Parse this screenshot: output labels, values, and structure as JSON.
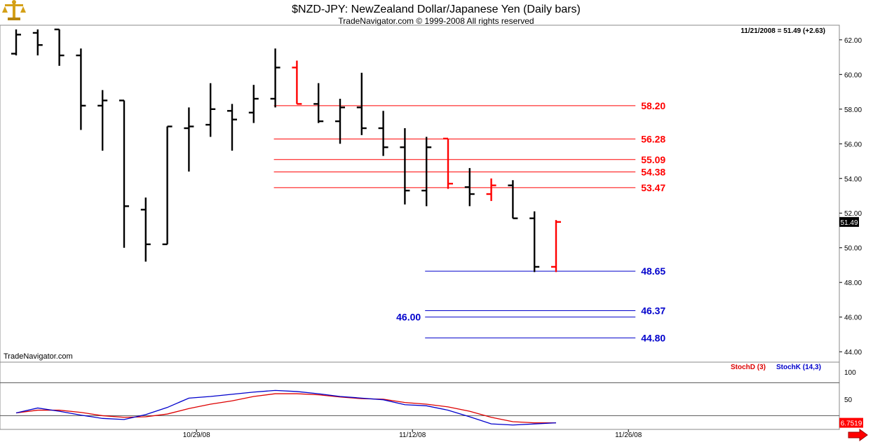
{
  "header": {
    "title": "$NZD-JPY:  NewZealand Dollar/Japanese Yen  (Daily bars)",
    "copyright": "TradeNavigator.com © 1999-2008 All rights reserved",
    "last_quote": "11/21/2008 = 51.49 (+2.63)",
    "watermark": "TradeNavigator.com",
    "logo_icon": "scales-icon"
  },
  "colors": {
    "up_bar": "#000000",
    "down_bar": "#ff0000",
    "resistance": "#ff0000",
    "support": "#0000cc",
    "stoch_d": "#dd0000",
    "stoch_k": "#0000cc",
    "last_price_box": "#000000"
  },
  "chart_data": [
    {
      "type": "ohlc",
      "title": "$NZD-JPY:  NewZealand Dollar/Japanese Yen  (Daily bars)",
      "ylim": [
        43.4,
        62.6
      ],
      "y_ticks": [
        44,
        46,
        48,
        50,
        52,
        54,
        56,
        58,
        60,
        62
      ],
      "y_tick_labels": [
        "44.00",
        "46.00",
        "48.00",
        "50.00",
        "52.00",
        "54.00",
        "56.00",
        "58.00",
        "60.00",
        "62.00"
      ],
      "x_tick_labels": [
        {
          "label": "10/29/08",
          "bar_index": 9
        },
        {
          "label": "11/12/08",
          "bar_index": 19
        },
        {
          "label": "11/26/08",
          "bar_index": 29
        }
      ],
      "last_price": 51.49,
      "last_price_label": "51.49",
      "bars": [
        {
          "o": 61.2,
          "h": 62.6,
          "l": 61.1,
          "c": 62.3,
          "color": "black"
        },
        {
          "o": 62.4,
          "h": 62.6,
          "l": 61.1,
          "c": 61.7,
          "color": "black"
        },
        {
          "o": 62.6,
          "h": 62.6,
          "l": 60.5,
          "c": 61.1,
          "color": "black"
        },
        {
          "o": 61.1,
          "h": 61.5,
          "l": 56.8,
          "c": 58.2,
          "color": "black"
        },
        {
          "o": 58.2,
          "h": 59.1,
          "l": 55.6,
          "c": 58.5,
          "color": "black"
        },
        {
          "o": 58.5,
          "h": 58.5,
          "l": 50.0,
          "c": 52.4,
          "color": "black"
        },
        {
          "o": 52.2,
          "h": 52.9,
          "l": 49.2,
          "c": 50.2,
          "color": "black"
        },
        {
          "o": 50.2,
          "h": 57.0,
          "l": 50.2,
          "c": 57.0,
          "color": "black"
        },
        {
          "o": 56.9,
          "h": 58.1,
          "l": 54.4,
          "c": 57.0,
          "color": "black"
        },
        {
          "o": 57.1,
          "h": 59.5,
          "l": 56.4,
          "c": 58.0,
          "color": "black"
        },
        {
          "o": 57.9,
          "h": 58.3,
          "l": 55.6,
          "c": 57.4,
          "color": "black"
        },
        {
          "o": 57.8,
          "h": 59.4,
          "l": 57.2,
          "c": 58.6,
          "color": "black"
        },
        {
          "o": 58.6,
          "h": 61.5,
          "l": 58.1,
          "c": 60.4,
          "color": "black"
        },
        {
          "o": 60.4,
          "h": 60.8,
          "l": 58.3,
          "c": 58.3,
          "color": "red"
        },
        {
          "o": 58.3,
          "h": 59.5,
          "l": 57.2,
          "c": 57.3,
          "color": "black"
        },
        {
          "o": 57.3,
          "h": 58.6,
          "l": 56.0,
          "c": 58.1,
          "color": "black"
        },
        {
          "o": 58.1,
          "h": 60.1,
          "l": 56.5,
          "c": 56.9,
          "color": "black"
        },
        {
          "o": 56.9,
          "h": 57.9,
          "l": 55.3,
          "c": 55.8,
          "color": "black"
        },
        {
          "o": 55.8,
          "h": 56.9,
          "l": 52.5,
          "c": 53.3,
          "color": "black"
        },
        {
          "o": 53.3,
          "h": 56.4,
          "l": 52.4,
          "c": 55.8,
          "color": "black"
        },
        {
          "o": 56.3,
          "h": 56.3,
          "l": 53.4,
          "c": 53.7,
          "color": "red"
        },
        {
          "o": 53.5,
          "h": 54.6,
          "l": 52.4,
          "c": 53.1,
          "color": "black"
        },
        {
          "o": 53.1,
          "h": 54.0,
          "l": 52.7,
          "c": 53.6,
          "color": "red"
        },
        {
          "o": 53.6,
          "h": 53.9,
          "l": 51.7,
          "c": 51.7,
          "color": "black"
        },
        {
          "o": 51.7,
          "h": 52.1,
          "l": 48.6,
          "c": 48.9,
          "color": "black"
        },
        {
          "o": 48.9,
          "h": 51.6,
          "l": 48.6,
          "c": 51.49,
          "color": "red"
        }
      ],
      "levels": [
        {
          "value": 58.2,
          "label": "58.20",
          "color": "red",
          "from_bar": 12,
          "to_bar": 29
        },
        {
          "value": 56.28,
          "label": "56.28",
          "color": "red",
          "from_bar": 12,
          "to_bar": 29
        },
        {
          "value": 55.09,
          "label": "55.09",
          "color": "red",
          "from_bar": 12,
          "to_bar": 29
        },
        {
          "value": 54.38,
          "label": "54.38",
          "color": "red",
          "from_bar": 12,
          "to_bar": 29
        },
        {
          "value": 53.47,
          "label": "53.47",
          "color": "red",
          "from_bar": 12,
          "to_bar": 29
        },
        {
          "value": 48.65,
          "label": "48.65",
          "color": "blue",
          "from_bar": 19,
          "to_bar": 29
        },
        {
          "value": 46.37,
          "label": "46.37",
          "color": "blue",
          "from_bar": 19,
          "to_bar": 29
        },
        {
          "value": 46.0,
          "label": "46.00",
          "color": "blue",
          "from_bar": 19,
          "to_bar": 29,
          "label_side": "left"
        },
        {
          "value": 44.8,
          "label": "44.80",
          "color": "blue",
          "from_bar": 19,
          "to_bar": 29
        }
      ]
    },
    {
      "type": "line",
      "title": "Stochastic",
      "ylim": [
        -5,
        115
      ],
      "y_tick_labels": [
        "100",
        "50"
      ],
      "reference_lines": [
        80,
        20
      ],
      "last_value_label": "6.7519",
      "series": [
        {
          "name": "StochD (3)",
          "color": "red",
          "values": [
            25,
            30,
            30,
            26,
            20,
            17,
            18,
            23,
            33,
            41,
            47,
            55,
            60,
            60,
            58,
            54,
            51,
            50,
            44,
            41,
            36,
            28,
            17,
            9,
            7,
            7
          ]
        },
        {
          "name": "StochK (14,3)",
          "color": "blue",
          "values": [
            25,
            34,
            28,
            21,
            15,
            13,
            22,
            35,
            52,
            55,
            59,
            63,
            66,
            64,
            60,
            55,
            52,
            49,
            40,
            38,
            30,
            18,
            5,
            3,
            5,
            7
          ]
        }
      ]
    }
  ]
}
